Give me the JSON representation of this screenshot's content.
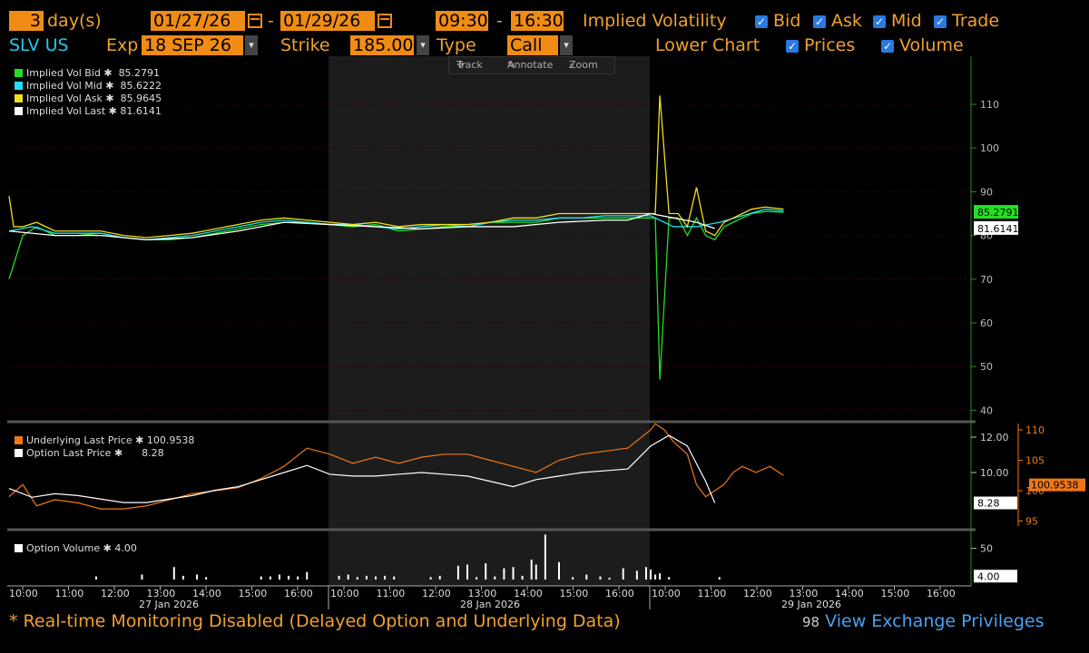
{
  "header": {
    "days_value": "3",
    "days_label": "day(s)",
    "start_date": "01/27/26",
    "end_date": "01/29/26",
    "start_time": "09:30",
    "end_time": "16:30",
    "dash": "-",
    "mode_label": "Implied Volatility",
    "checks": [
      "Bid",
      "Ask",
      "Mid",
      "Trade"
    ],
    "ticker": "SLV US",
    "exp_label": "Exp",
    "exp_value": "18 SEP 26",
    "strike_label": "Strike",
    "strike_value": "185.00",
    "type_label": "Type",
    "type_value": "Call",
    "lower_chart_label": "Lower Chart",
    "lower_checks": [
      "Prices",
      "Volume"
    ]
  },
  "toolbar": {
    "track": "Track",
    "annotate": "Annotate",
    "zoom": "Zoom"
  },
  "colors": {
    "bid": "#22e022",
    "mid": "#22e0f0",
    "ask": "#f0e020",
    "last": "#ffffff",
    "underlying": "#f07814",
    "accent": "#f08c14"
  },
  "chart_data": [
    {
      "type": "line",
      "title": "Implied Volatility",
      "legend_placement": "top-left",
      "y_axis": "right",
      "ylim": [
        38,
        121
      ],
      "y_ticks": [
        40,
        50,
        60,
        70,
        80,
        90,
        100,
        110
      ],
      "legend": [
        {
          "name": "Implied Vol Bid",
          "value": "85.2791",
          "color": "#22e022"
        },
        {
          "name": "Implied Vol Mid",
          "value": "85.6222",
          "color": "#22e0f0"
        },
        {
          "name": "Implied Vol Ask",
          "value": "85.9645",
          "color": "#f0e020"
        },
        {
          "name": "Implied Vol Last",
          "value": "81.6141",
          "color": "#ffffff"
        }
      ],
      "value_tags": [
        {
          "value": "85.2791",
          "y": 85.3,
          "color": "#22e022"
        },
        {
          "value": "81.6141",
          "y": 81.6,
          "color": "#ffffff"
        }
      ],
      "series": [
        {
          "name": "Implied Vol Bid",
          "color": "#22e022",
          "x": [
            0,
            0.3,
            0.6,
            1.0,
            1.5,
            2.0,
            2.5,
            3.0,
            3.5,
            4.0,
            4.5,
            5.0,
            5.5,
            6.0,
            6.5,
            7.0,
            7.5,
            8.0,
            8.5,
            9.0,
            9.5,
            10.0,
            10.5,
            11.0,
            11.5,
            12.0,
            12.5,
            13.0,
            13.5,
            14.0,
            14.1,
            14.2,
            14.4,
            14.6,
            14.8,
            15.0,
            15.2,
            15.4,
            15.6,
            15.8,
            16.0,
            16.2,
            16.5,
            16.9
          ],
          "y": [
            70,
            80,
            82,
            80,
            80,
            80.5,
            79.5,
            79,
            79,
            79.5,
            80.5,
            81.5,
            82.5,
            83,
            83,
            82.5,
            82,
            82.5,
            81,
            81.5,
            82,
            82,
            83,
            83,
            83,
            84,
            84,
            84,
            84,
            84,
            84,
            47,
            84,
            84,
            80,
            84,
            80,
            79,
            82,
            83,
            84,
            85,
            85.5,
            85.3
          ]
        },
        {
          "name": "Implied Vol Mid",
          "color": "#22e0f0",
          "x": [
            0,
            0.5,
            1.0,
            1.5,
            2.0,
            2.5,
            3.0,
            3.5,
            4.0,
            4.5,
            5.0,
            5.5,
            6.0,
            6.5,
            7.0,
            7.5,
            8.0,
            8.5,
            9.0,
            9.5,
            10.0,
            10.5,
            11.0,
            11.5,
            12.0,
            12.5,
            13.0,
            13.5,
            14.0,
            14.5,
            15.0,
            15.5,
            16.0,
            16.5,
            16.9
          ],
          "y": [
            81,
            82,
            80.5,
            80.5,
            80.5,
            79.5,
            79,
            79.5,
            80,
            81,
            82,
            83,
            83.5,
            83,
            82.5,
            82.5,
            82,
            81.5,
            82,
            82.5,
            82,
            83,
            83.5,
            83.5,
            84,
            84,
            84.5,
            84.5,
            84.5,
            82,
            82,
            83,
            84.5,
            86,
            85.6
          ]
        },
        {
          "name": "Implied Vol Ask",
          "color": "#f0e020",
          "x": [
            0,
            0.1,
            0.3,
            0.6,
            1.0,
            1.5,
            2.0,
            2.5,
            3.0,
            3.5,
            4.0,
            4.5,
            5.0,
            5.5,
            6.0,
            6.5,
            7.0,
            7.5,
            8.0,
            8.5,
            9.0,
            9.5,
            10.0,
            10.5,
            11.0,
            11.5,
            12.0,
            12.5,
            13.0,
            13.5,
            14.0,
            14.1,
            14.2,
            14.4,
            14.6,
            14.8,
            15.0,
            15.2,
            15.4,
            15.6,
            15.8,
            16.0,
            16.2,
            16.5,
            16.9
          ],
          "y": [
            89,
            82,
            82,
            83,
            81,
            81,
            81,
            80,
            79.5,
            80,
            80.5,
            81.5,
            82.5,
            83.5,
            84,
            83.5,
            83,
            82.5,
            83,
            82,
            82.5,
            82.5,
            82.5,
            83,
            84,
            84,
            85,
            85,
            85,
            85,
            85,
            85,
            112,
            85,
            85,
            82,
            91,
            81,
            80,
            83,
            84,
            85,
            86,
            86.5,
            86
          ]
        },
        {
          "name": "Implied Vol Last",
          "color": "#ffffff",
          "x": [
            0,
            1.0,
            2.0,
            3.0,
            4.0,
            5.0,
            6.0,
            7.0,
            8.0,
            9.0,
            10.0,
            11.0,
            12.0,
            13.0,
            13.5,
            14.0,
            14.5,
            15.0,
            15.4
          ],
          "y": [
            81,
            80,
            80,
            79,
            79.5,
            81,
            83,
            82.5,
            82,
            81.5,
            82,
            82,
            83,
            83.5,
            83.5,
            85,
            84,
            83,
            81.6
          ]
        }
      ]
    },
    {
      "type": "line",
      "legend_placement": "top-left",
      "legend": [
        {
          "name": "Underlying Last Price",
          "value": "100.9538",
          "color": "#f07814"
        },
        {
          "name": "Option Last Price",
          "value": "8.28",
          "color": "#ffffff"
        }
      ],
      "y_axis_option": {
        "ticks": [
          "10.00",
          "12.00"
        ],
        "values": [
          10,
          12
        ]
      },
      "y_axis_underlying": {
        "ticks": [
          "95",
          "100",
          "105",
          "110"
        ],
        "values": [
          95,
          100,
          105,
          110
        ]
      },
      "value_tags": [
        {
          "value": "8.28",
          "y": 8.28,
          "color": "#ffffff"
        },
        {
          "value": "100.9538",
          "y": 100.95,
          "color": "#f07814"
        }
      ],
      "series": [
        {
          "name": "Underlying Last Price",
          "color": "#f07814",
          "axis": "right",
          "x": [
            0,
            0.3,
            0.6,
            1.0,
            1.5,
            2.0,
            2.5,
            3.0,
            3.5,
            4.0,
            4.5,
            5.0,
            5.5,
            6.0,
            6.5,
            7.0,
            7.5,
            8.0,
            8.5,
            9.0,
            9.5,
            10.0,
            10.5,
            11.0,
            11.5,
            12.0,
            12.5,
            13.0,
            13.5,
            14.0,
            14.1,
            14.3,
            14.5,
            14.8,
            15.0,
            15.2,
            15.4,
            15.6,
            15.8,
            16.0,
            16.3,
            16.6,
            16.9
          ],
          "y": [
            99,
            101,
            97.5,
            98.5,
            98,
            97,
            97,
            97.5,
            98.5,
            99.5,
            100,
            100.5,
            102,
            104,
            107,
            106,
            104.5,
            105.5,
            104.5,
            105.5,
            106,
            106,
            105,
            104,
            103,
            105,
            106,
            106.5,
            107,
            110,
            111,
            110,
            108,
            106,
            101,
            99,
            100,
            101,
            103,
            104,
            103,
            104,
            102.5
          ]
        },
        {
          "name": "Option Last Price",
          "color": "#ffffff",
          "axis": "left",
          "x": [
            0,
            0.5,
            1.0,
            1.5,
            2.0,
            2.5,
            3.0,
            3.5,
            4.0,
            4.5,
            5.0,
            5.5,
            6.0,
            6.5,
            7.0,
            7.5,
            8.0,
            8.5,
            9.0,
            9.5,
            10.0,
            10.5,
            11.0,
            11.5,
            12.0,
            12.5,
            13.0,
            13.5,
            14.0,
            14.4,
            14.8,
            15.2,
            15.4
          ],
          "y": [
            9.1,
            8.6,
            8.8,
            8.7,
            8.5,
            8.3,
            8.3,
            8.5,
            8.7,
            9.0,
            9.2,
            9.6,
            10.0,
            10.4,
            9.9,
            9.8,
            9.8,
            9.9,
            10.0,
            9.9,
            9.8,
            9.5,
            9.2,
            9.6,
            9.8,
            10.0,
            10.1,
            10.2,
            11.5,
            12.1,
            11.5,
            9.5,
            8.28
          ]
        }
      ]
    },
    {
      "type": "bar",
      "legend_placement": "top-left",
      "legend": [
        {
          "name": "Option Volume",
          "value": "4.00",
          "color": "#ffffff"
        }
      ],
      "y_ticks": [
        "50"
      ],
      "ylim": [
        0,
        80
      ],
      "value_tags": [
        {
          "value": "4.00",
          "y": 4,
          "color": "#ffffff"
        }
      ],
      "x": [
        1.9,
        2.9,
        3.6,
        3.8,
        4.1,
        4.3,
        5.5,
        5.7,
        5.9,
        6.1,
        6.3,
        6.5,
        7.2,
        7.4,
        7.6,
        7.8,
        8.0,
        8.2,
        8.4,
        9.2,
        9.4,
        9.8,
        10.0,
        10.2,
        10.4,
        10.6,
        10.8,
        11.0,
        11.2,
        11.4,
        11.5,
        11.7,
        12.0,
        12.3,
        12.6,
        12.9,
        13.1,
        13.4,
        13.7,
        13.9,
        14.0,
        14.1,
        14.2,
        14.4,
        15.5
      ],
      "values": [
        5,
        8,
        20,
        6,
        8,
        4,
        5,
        5,
        8,
        6,
        5,
        12,
        6,
        8,
        4,
        6,
        5,
        6,
        5,
        4,
        6,
        22,
        24,
        4,
        26,
        5,
        18,
        20,
        6,
        32,
        24,
        72,
        28,
        4,
        8,
        5,
        3,
        18,
        14,
        20,
        16,
        8,
        10,
        4,
        4
      ]
    }
  ],
  "x_axis": {
    "ticks": [
      "10:00",
      "11:00",
      "12:00",
      "13:00",
      "14:00",
      "15:00",
      "16:00",
      "10:00",
      "11:00",
      "12:00",
      "13:00",
      "14:00",
      "15:00",
      "16:00",
      "10:00",
      "11:00",
      "12:00",
      "13:00",
      "14:00",
      "15:00",
      "16:00"
    ],
    "days": [
      "27 Jan 2026",
      "28 Jan 2026",
      "29 Jan 2026"
    ]
  },
  "footer": {
    "warning": "* Real-time Monitoring Disabled (Delayed Option and Underlying Data)",
    "privileges_icon": "98",
    "privileges": "View Exchange Privileges"
  }
}
